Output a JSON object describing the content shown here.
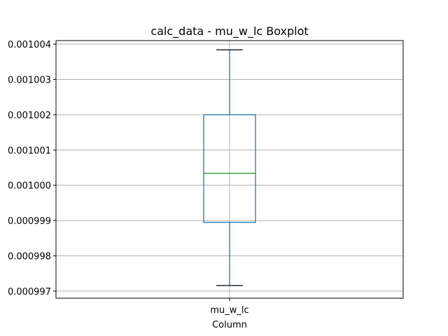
{
  "chart_data": {
    "type": "boxplot",
    "title": "calc_data - mu_w_lc Boxplot",
    "xlabel": "Column",
    "ylabel": "",
    "categories": [
      "mu_w_lc"
    ],
    "boxes": [
      {
        "category": "mu_w_lc",
        "whisker_low": 0.00099716,
        "q1": 0.00099895,
        "median": 0.00100034,
        "q3": 0.001002,
        "whisker_high": 0.00100384
      }
    ],
    "ylim": [
      0.0009968,
      0.0010041
    ],
    "yticks": [
      0.000997,
      0.000998,
      0.000999,
      0.001,
      0.001001,
      0.001002,
      0.001003,
      0.001004
    ],
    "ytick_labels": [
      "0.000997",
      "0.000998",
      "0.000999",
      "0.001000",
      "0.001001",
      "0.001002",
      "0.001003",
      "0.001004"
    ],
    "grid": true,
    "colors": {
      "box": "#1f77b4",
      "whisker": "#1f77b4",
      "cap": "#000000",
      "median": "#2ca02c",
      "grid": "#b0b0b0"
    }
  }
}
